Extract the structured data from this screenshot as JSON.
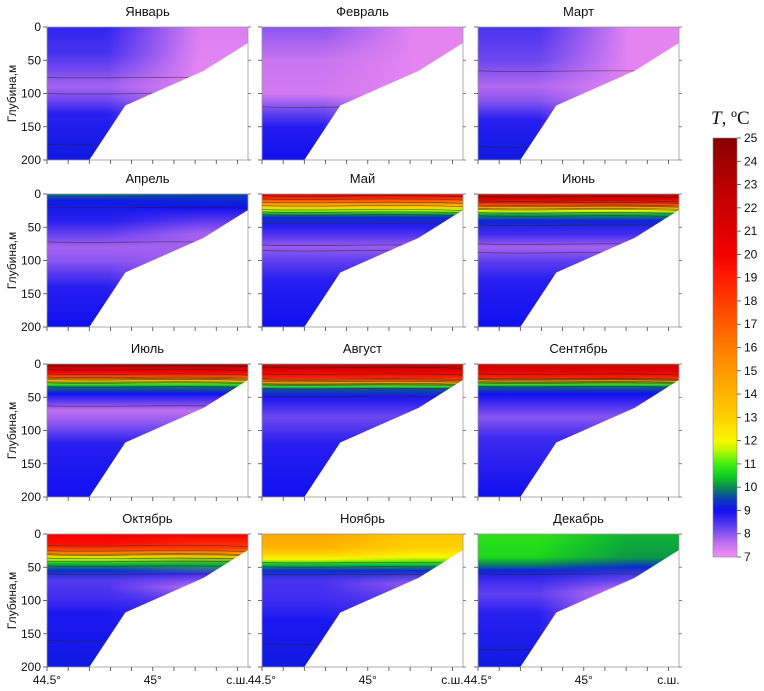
{
  "chart_data": {
    "type": "heatmap",
    "title": "",
    "ylabel": "Глубина,м",
    "xlabel_suffix": "с.ш.",
    "xlim": [
      44.5,
      45.45
    ],
    "ylim": [
      0,
      200
    ],
    "x_ticks": [
      44.5,
      44.6,
      44.7,
      44.8,
      44.9,
      45.0,
      45.1,
      45.2,
      45.3,
      45.4
    ],
    "x_tick_labels": [
      {
        "value": 44.5,
        "label": "44.5°"
      },
      {
        "value": 45.0,
        "label": "45°"
      },
      {
        "value": 45.4,
        "label": "с.ш."
      }
    ],
    "y_ticks": [
      0,
      50,
      100,
      150,
      200
    ],
    "y_tick_labels": [
      "0",
      "50",
      "100",
      "150",
      "200"
    ],
    "bottom_topography": [
      [
        44.7,
        200
      ],
      [
        44.87,
        118
      ],
      [
        45.24,
        66
      ],
      [
        45.45,
        24
      ]
    ],
    "colorbar": {
      "title": "T, ºC",
      "range": [
        7,
        25
      ],
      "ticks": [
        "7",
        "8",
        "9",
        "10",
        "11",
        "12",
        "13",
        "14",
        "15",
        "16",
        "17",
        "18",
        "19",
        "20",
        "21",
        "22",
        "23",
        "24",
        "25"
      ],
      "stops": [
        [
          7,
          "#f58ef2"
        ],
        [
          7.6,
          "#c070f0"
        ],
        [
          8.3,
          "#6040f0"
        ],
        [
          9,
          "#1010f0"
        ],
        [
          9.5,
          "#0a40b0"
        ],
        [
          10,
          "#0a8a50"
        ],
        [
          10.5,
          "#10d020"
        ],
        [
          11,
          "#40f010"
        ],
        [
          11.6,
          "#c0f800"
        ],
        [
          12,
          "#f8f800"
        ],
        [
          13,
          "#ffd000"
        ],
        [
          14,
          "#ffb400"
        ],
        [
          15,
          "#ff9800"
        ],
        [
          16,
          "#ff7c00"
        ],
        [
          17,
          "#ff5c00"
        ],
        [
          18,
          "#ff3c00"
        ],
        [
          19,
          "#ff1c00"
        ],
        [
          20,
          "#f40000"
        ],
        [
          21,
          "#e00000"
        ],
        [
          22,
          "#cc0000"
        ],
        [
          23,
          "#b80000"
        ],
        [
          24,
          "#a00000"
        ],
        [
          25,
          "#880000"
        ]
      ]
    },
    "panels": [
      {
        "month": "Январь",
        "west": [
          [
            0,
            8.7
          ],
          [
            40,
            8.5
          ],
          [
            90,
            7.8
          ],
          [
            110,
            8.2
          ],
          [
            130,
            8.8
          ],
          [
            200,
            9.1
          ]
        ],
        "east": [
          [
            0,
            7.3
          ],
          [
            60,
            7.2
          ],
          [
            200,
            7.2
          ]
        ]
      },
      {
        "month": "Февраль",
        "west": [
          [
            0,
            8.0
          ],
          [
            50,
            7.5
          ],
          [
            100,
            7.4
          ],
          [
            130,
            8.3
          ],
          [
            150,
            8.8
          ],
          [
            200,
            9.0
          ]
        ],
        "east": [
          [
            0,
            7.2
          ],
          [
            200,
            7.2
          ]
        ]
      },
      {
        "month": "Март",
        "west": [
          [
            0,
            8.5
          ],
          [
            50,
            8.2
          ],
          [
            90,
            7.7
          ],
          [
            110,
            8.0
          ],
          [
            140,
            8.8
          ],
          [
            200,
            9.1
          ]
        ],
        "east": [
          [
            0,
            7.2
          ],
          [
            200,
            7.2
          ]
        ]
      },
      {
        "month": "Апрель",
        "west": [
          [
            0,
            9.8
          ],
          [
            10,
            9.1
          ],
          [
            40,
            8.8
          ],
          [
            80,
            7.8
          ],
          [
            100,
            8.0
          ],
          [
            140,
            8.8
          ],
          [
            200,
            9.0
          ]
        ],
        "east": [
          [
            0,
            9.5
          ],
          [
            20,
            9.0
          ],
          [
            60,
            7.8
          ],
          [
            200,
            7.9
          ]
        ]
      },
      {
        "month": "Май",
        "west": [
          [
            0,
            21
          ],
          [
            5,
            19
          ],
          [
            10,
            17
          ],
          [
            15,
            15
          ],
          [
            20,
            13
          ],
          [
            25,
            11.5
          ],
          [
            30,
            10.2
          ],
          [
            35,
            9.3
          ],
          [
            50,
            8.8
          ],
          [
            80,
            7.9
          ],
          [
            100,
            8.3
          ],
          [
            130,
            8.8
          ],
          [
            200,
            9.0
          ]
        ]
      },
      {
        "month": "Июнь",
        "west": [
          [
            0,
            23
          ],
          [
            8,
            21
          ],
          [
            15,
            18
          ],
          [
            20,
            15
          ],
          [
            25,
            12
          ],
          [
            30,
            10.3
          ],
          [
            40,
            9.2
          ],
          [
            60,
            8.6
          ],
          [
            80,
            7.8
          ],
          [
            100,
            8.3
          ],
          [
            130,
            8.8
          ],
          [
            200,
            9.0
          ]
        ]
      },
      {
        "month": "Июль",
        "west": [
          [
            0,
            24
          ],
          [
            5,
            22
          ],
          [
            12,
            20
          ],
          [
            18,
            18
          ],
          [
            25,
            14
          ],
          [
            30,
            11
          ],
          [
            35,
            9.8
          ],
          [
            45,
            9.0
          ],
          [
            70,
            7.6
          ],
          [
            90,
            8.0
          ],
          [
            120,
            8.8
          ],
          [
            200,
            9.0
          ]
        ]
      },
      {
        "month": "Август",
        "west": [
          [
            0,
            23
          ],
          [
            10,
            21
          ],
          [
            20,
            19
          ],
          [
            28,
            15
          ],
          [
            33,
            11
          ],
          [
            38,
            9.6
          ],
          [
            50,
            8.9
          ],
          [
            80,
            8.2
          ],
          [
            120,
            8.8
          ],
          [
            200,
            9.0
          ]
        ]
      },
      {
        "month": "Сентябрь",
        "west": [
          [
            0,
            22
          ],
          [
            10,
            21
          ],
          [
            20,
            19
          ],
          [
            25,
            15
          ],
          [
            30,
            11
          ],
          [
            35,
            9.7
          ],
          [
            45,
            9.0
          ],
          [
            80,
            8.0
          ],
          [
            110,
            8.6
          ],
          [
            200,
            9.0
          ]
        ]
      },
      {
        "month": "Октябрь",
        "west": [
          [
            0,
            20
          ],
          [
            15,
            19.5
          ],
          [
            22,
            18
          ],
          [
            28,
            16
          ],
          [
            33,
            13
          ],
          [
            38,
            11.5
          ],
          [
            45,
            10.3
          ],
          [
            55,
            9.3
          ],
          [
            70,
            8.4
          ],
          [
            100,
            8.6
          ],
          [
            120,
            8.9
          ],
          [
            200,
            9.1
          ]
        ],
        "east": [
          [
            0,
            20
          ],
          [
            22,
            18
          ],
          [
            33,
            13
          ],
          [
            45,
            10.3
          ],
          [
            60,
            8.6
          ],
          [
            80,
            7.6
          ],
          [
            100,
            8.4
          ],
          [
            200,
            9.0
          ]
        ]
      },
      {
        "month": "Ноябрь",
        "west": [
          [
            0,
            14.5
          ],
          [
            20,
            14
          ],
          [
            30,
            13
          ],
          [
            38,
            12
          ],
          [
            45,
            10.5
          ],
          [
            55,
            9.3
          ],
          [
            70,
            8.5
          ],
          [
            100,
            8.6
          ],
          [
            130,
            8.9
          ],
          [
            200,
            9.1
          ]
        ],
        "east": [
          [
            0,
            13.3
          ],
          [
            20,
            13
          ],
          [
            35,
            12
          ],
          [
            45,
            10.5
          ],
          [
            55,
            9.3
          ],
          [
            75,
            7.9
          ],
          [
            100,
            8.4
          ],
          [
            200,
            9.0
          ]
        ]
      },
      {
        "month": "Декабрь",
        "west": [
          [
            0,
            10.8
          ],
          [
            35,
            10.6
          ],
          [
            45,
            10
          ],
          [
            55,
            9.2
          ],
          [
            70,
            8.6
          ],
          [
            90,
            8.3
          ],
          [
            120,
            8.8
          ],
          [
            200,
            9.1
          ]
        ],
        "east": [
          [
            0,
            10.3
          ],
          [
            35,
            10.1
          ],
          [
            50,
            9.3
          ],
          [
            70,
            8.2
          ],
          [
            85,
            7.5
          ],
          [
            105,
            7.3
          ],
          [
            200,
            7.6
          ]
        ]
      }
    ]
  }
}
